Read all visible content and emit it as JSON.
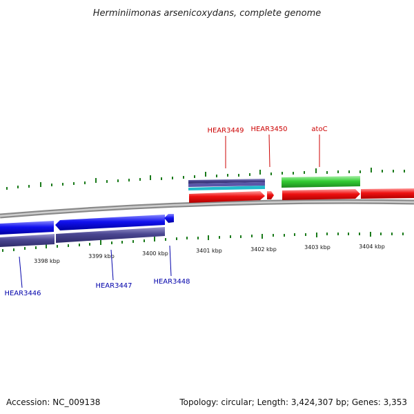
{
  "title": "Herminiimonas arsenicoxydans, complete genome",
  "footer": {
    "accession": "Accession: NC_009138",
    "topology": "Topology: circular; Length: 3,424,307 bp; Genes: 3,353"
  },
  "scale_labels": [
    "3398 kbp",
    "3399 kbp",
    "3400 kbp",
    "3401 kbp",
    "3402 kbp",
    "3403 kbp",
    "3404 kbp"
  ],
  "gene_labels_top": [
    "HEAR3449",
    "HEAR3450",
    "atoC"
  ],
  "gene_labels_bottom": [
    "HEAR3446",
    "HEAR3447",
    "HEAR3448"
  ],
  "colors": {
    "forward_gene": "#ee1111",
    "reverse_gene": "#1111ee",
    "rna": "#33cc33",
    "ring": "#888888",
    "tick": "#1a7a1a",
    "top_label": "#cc0000",
    "bottom_label": "#0000aa"
  }
}
